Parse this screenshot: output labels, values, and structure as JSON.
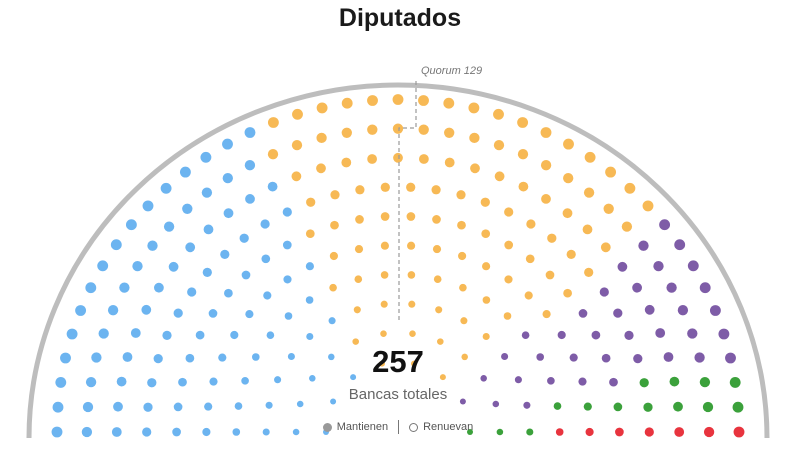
{
  "chart_data": {
    "type": "parliament",
    "title": "Diputados",
    "total_seats": 257,
    "total_label": "Bancas totales",
    "quorum": 129,
    "quorum_label": "Quorum 129",
    "series": [
      {
        "color": "#6cb4f0",
        "seats": 94
      },
      {
        "color": "#f7b955",
        "seats": 104
      },
      {
        "color": "#7e5ca7",
        "seats": 38
      },
      {
        "color": "#3ba13b",
        "seats": 14
      },
      {
        "color": "#e8343e",
        "seats": 7
      }
    ],
    "legend": [
      {
        "label": "Mantienen",
        "marker": "filled"
      },
      {
        "label": "Renuevan",
        "marker": "hollow"
      }
    ]
  }
}
